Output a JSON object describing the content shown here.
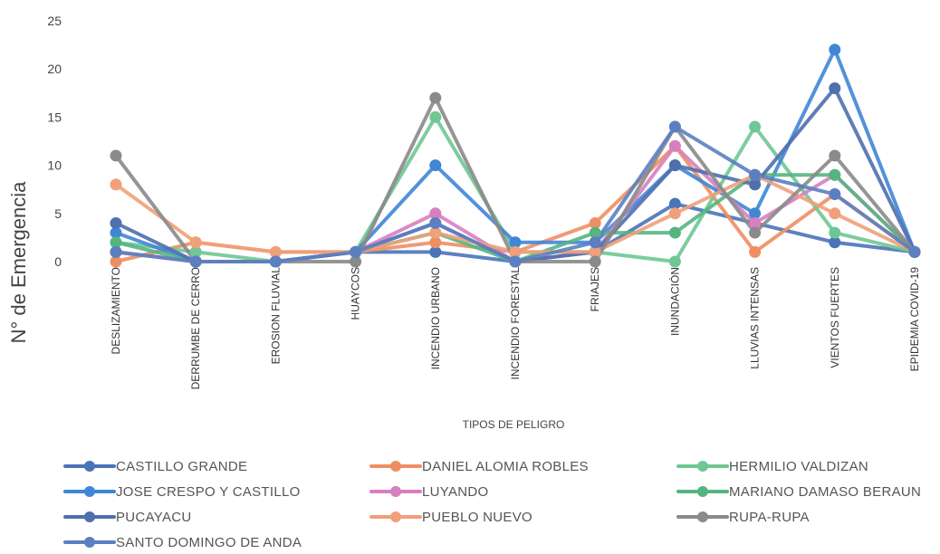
{
  "chart_data": {
    "type": "line",
    "title": "",
    "xlabel": "TIPOS DE PELIGRO",
    "ylabel": "N° de Emergencia",
    "ylim": [
      0,
      25
    ],
    "yticks": [
      "0",
      "5",
      "10",
      "15",
      "20",
      "25"
    ],
    "grid": false,
    "legend_position": "bottom",
    "categories": [
      "DESLIZAMIENTO",
      "DERRUMBE DE CERRO",
      "EROSION FLUVIAL",
      "HUAYCOS",
      "INCENDIO URBANO",
      "INCENDIO FORESTAL",
      "FRIAJES",
      "INUNDACIÓN",
      "LLUVIAS INTENSAS",
      "VIENTOS FUERTES",
      "EPIDEMIA COVID-19"
    ],
    "series": [
      {
        "name": "CASTILLO GRANDE",
        "color": "#4a74b8",
        "values": [
          1,
          0,
          0,
          1,
          1,
          0,
          1,
          6,
          4,
          2,
          1
        ]
      },
      {
        "name": "DANIEL ALOMIA ROBLES",
        "color": "#ee8f63",
        "values": [
          0,
          2,
          1,
          1,
          2,
          1,
          4,
          12,
          1,
          7,
          1
        ]
      },
      {
        "name": "HERMILIO VALDIZAN",
        "color": "#6fc794",
        "values": [
          2,
          1,
          0,
          1,
          15,
          1,
          1,
          0,
          14,
          3,
          1
        ]
      },
      {
        "name": "JOSE CRESPO Y CASTILLO",
        "color": "#3f86d6",
        "values": [
          3,
          0,
          0,
          1,
          10,
          2,
          2,
          10,
          5,
          22,
          1
        ]
      },
      {
        "name": "LUYANDO",
        "color": "#d77fbf",
        "values": [
          1,
          0,
          0,
          1,
          5,
          0,
          1,
          12,
          4,
          9,
          1
        ]
      },
      {
        "name": "MARIANO DAMASO BERAUN",
        "color": "#55b581",
        "values": [
          2,
          0,
          0,
          1,
          3,
          0,
          3,
          3,
          9,
          9,
          1
        ]
      },
      {
        "name": "PUCAYACU",
        "color": "#4f6fad",
        "values": [
          4,
          0,
          0,
          1,
          4,
          0,
          1,
          10,
          8,
          18,
          1
        ]
      },
      {
        "name": "PUEBLO NUEVO",
        "color": "#f0a07a",
        "values": [
          8,
          2,
          1,
          1,
          3,
          1,
          1,
          5,
          9,
          5,
          1
        ]
      },
      {
        "name": "RUPA-RUPA",
        "color": "#8a8a8a",
        "values": [
          11,
          0,
          0,
          0,
          17,
          0,
          0,
          14,
          3,
          11,
          1
        ]
      },
      {
        "name": "SANTO DOMINGO DE ANDA",
        "color": "#5b7fc0",
        "values": [
          1,
          0,
          0,
          1,
          4,
          0,
          2,
          14,
          9,
          7,
          1
        ]
      }
    ]
  }
}
